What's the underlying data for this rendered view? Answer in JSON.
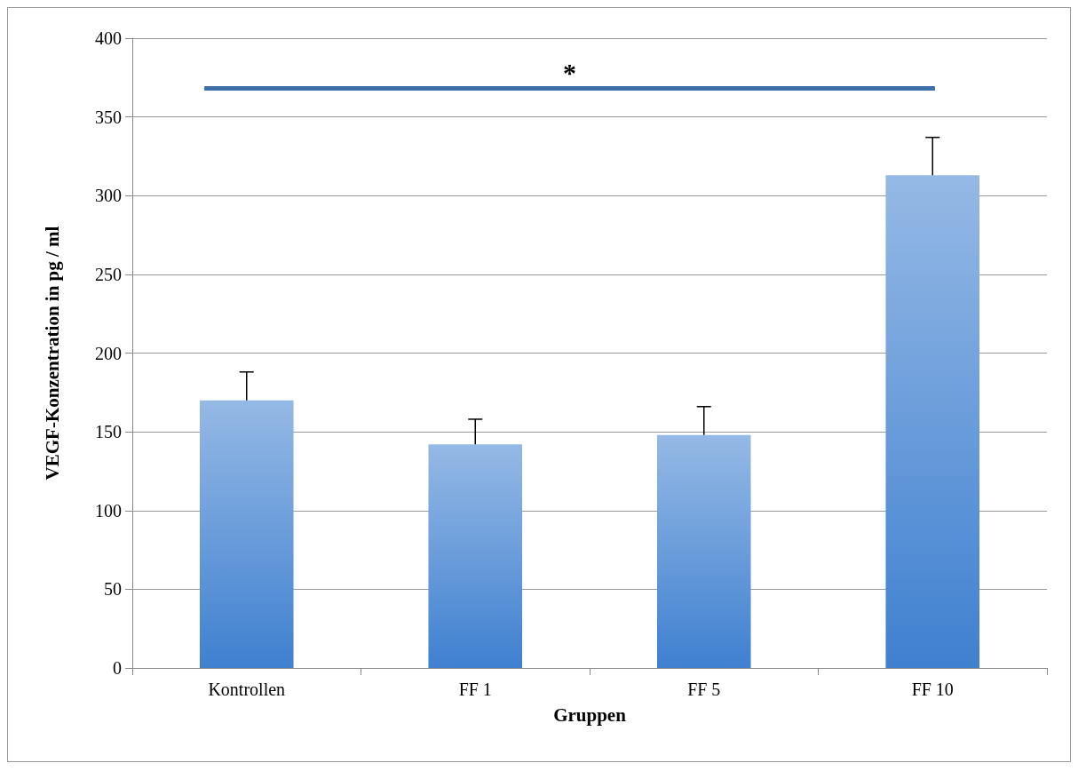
{
  "chart_data": {
    "type": "bar",
    "xlabel": "Gruppen",
    "ylabel": "VEGF-Konzentration in pg / ml",
    "categories": [
      "Kontrollen",
      "FF 1",
      "FF 5",
      "FF 10"
    ],
    "values": [
      170,
      142,
      148,
      313
    ],
    "errors": [
      [
        170,
        188
      ],
      [
        142,
        158
      ],
      [
        148,
        166
      ],
      [
        313,
        337
      ]
    ],
    "color": "#3f80d0",
    "ylim": [
      0,
      400
    ],
    "yticks": [
      0,
      50,
      100,
      150,
      200,
      250,
      300,
      350,
      400
    ],
    "grid": "y",
    "annotations": [
      "*"
    ]
  }
}
